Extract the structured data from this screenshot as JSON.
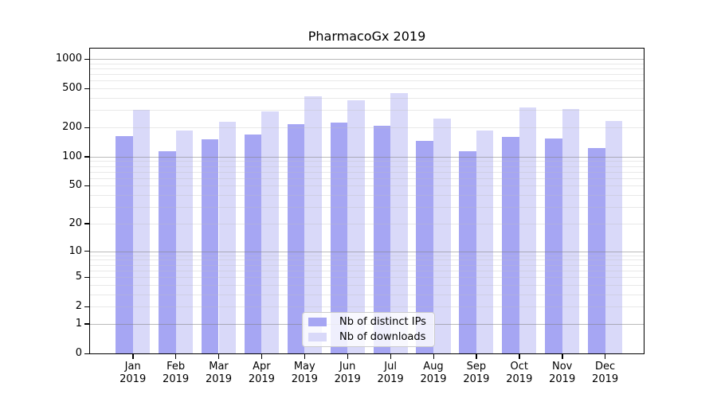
{
  "chart_data": {
    "type": "bar",
    "title": "PharmacoGx 2019",
    "x_categories": [
      "Jan",
      "Feb",
      "Mar",
      "Apr",
      "May",
      "Jun",
      "Jul",
      "Aug",
      "Sep",
      "Oct",
      "Nov",
      "Dec"
    ],
    "x_year": "2019",
    "series": [
      {
        "name": "Nb of distinct IPs",
        "color": "#a6a6f3",
        "values": [
          163,
          114,
          150,
          170,
          216,
          222,
          209,
          146,
          114,
          159,
          154,
          123
        ]
      },
      {
        "name": "Nb of downloads",
        "color": "#d9d9f9",
        "values": [
          305,
          184,
          230,
          292,
          418,
          378,
          450,
          248,
          184,
          322,
          310,
          234
        ]
      }
    ],
    "y_scale": "log1p",
    "y_ticks": [
      0,
      1,
      2,
      5,
      10,
      20,
      50,
      100,
      200,
      500,
      1000
    ],
    "ylim": [
      0,
      1000
    ],
    "grid": true,
    "grid_major_at": [
      1,
      10,
      100,
      1000
    ],
    "legend_position": "lower-center",
    "colors": {
      "major_grid": "#b0b0b0",
      "minor_grid": "#e9e9e9",
      "axis": "#000000",
      "background": "#ffffff"
    }
  }
}
